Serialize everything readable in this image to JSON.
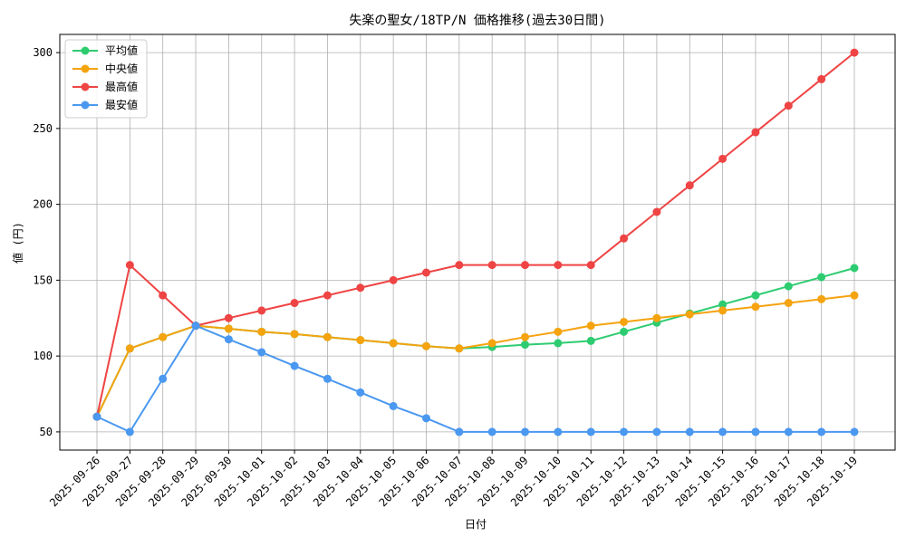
{
  "chart_data": {
    "type": "line",
    "title": "失楽の聖女/18TP/N 価格推移(過去30日間)",
    "x_label": "日付",
    "y_label": "値 (円)",
    "categories": [
      "2025-09-26",
      "2025-09-27",
      "2025-09-28",
      "2025-09-29",
      "2025-09-30",
      "2025-10-01",
      "2025-10-02",
      "2025-10-03",
      "2025-10-04",
      "2025-10-05",
      "2025-10-06",
      "2025-10-07",
      "2025-10-08",
      "2025-10-09",
      "2025-10-10",
      "2025-10-11",
      "2025-10-12",
      "2025-10-13",
      "2025-10-14",
      "2025-10-15",
      "2025-10-16",
      "2025-10-17",
      "2025-10-18",
      "2025-10-19"
    ],
    "series": [
      {
        "name": "平均値",
        "color": "#2ecc71",
        "values": [
          60,
          105,
          112.5,
          120,
          118,
          116,
          114.5,
          112.5,
          110.5,
          108.5,
          106.5,
          105,
          106,
          107.5,
          108.5,
          110,
          116,
          122,
          128,
          134,
          140,
          146,
          152,
          158
        ]
      },
      {
        "name": "中央値",
        "color": "#f5a30f",
        "values": [
          60,
          105,
          112.5,
          120,
          118,
          116,
          114.5,
          112.5,
          110.5,
          108.5,
          106.5,
          105,
          108.5,
          112.5,
          116,
          120,
          122.5,
          125,
          127.5,
          130,
          132.5,
          135,
          137.5,
          140
        ]
      },
      {
        "name": "最高値",
        "color": "#ef4444",
        "values": [
          60,
          160,
          140,
          120,
          125,
          130,
          135,
          140,
          145,
          150,
          155,
          160,
          160,
          160,
          160,
          160,
          177.5,
          195,
          212.5,
          230,
          247.5,
          265,
          282.5,
          300
        ]
      },
      {
        "name": "最安値",
        "color": "#4a98f0",
        "values": [
          60,
          50,
          85,
          120,
          111,
          102.5,
          93.5,
          85,
          76,
          67,
          59,
          50,
          50,
          50,
          50,
          50,
          50,
          50,
          50,
          50,
          50,
          50,
          50,
          50
        ]
      }
    ],
    "ylim": [
      38,
      312
    ],
    "yticks": [
      50,
      100,
      150,
      200,
      250,
      300
    ],
    "grid": true,
    "legend": "upper left"
  }
}
